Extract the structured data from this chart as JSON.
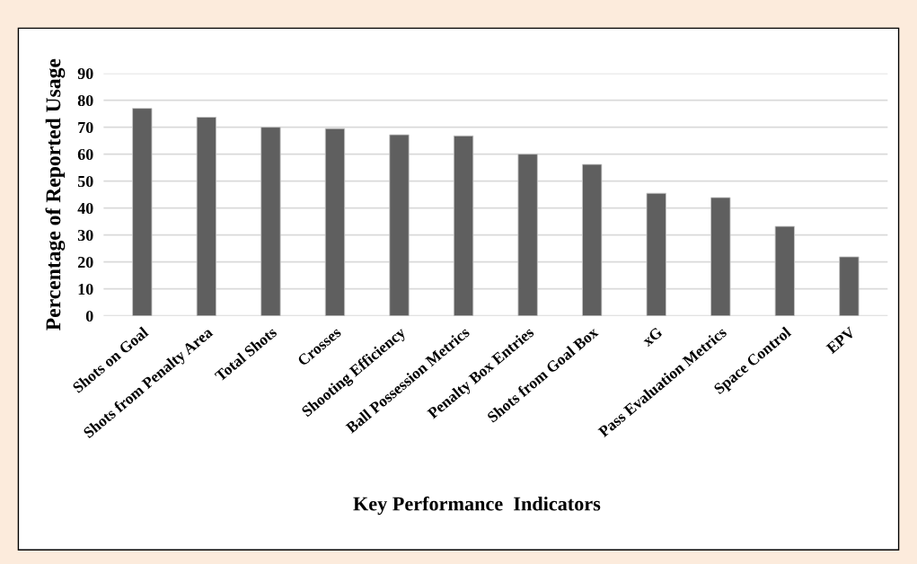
{
  "chart_data": {
    "type": "bar",
    "xlabel": "Key Performance  Indicators",
    "ylabel": "Percentage of Reported Usage",
    "categories": [
      "Shots on Goal",
      "Shots from Penalty Area",
      "Total Shots",
      "Crosses",
      "Shooting Efficiency",
      "Ball Possession Metrics",
      "Penalty Box Entries",
      "Shots from Goal Box",
      "xG",
      "Pass Evaluation Metrics",
      "Space Control",
      "EPV"
    ],
    "values": [
      77,
      73.7,
      70,
      69.5,
      67.2,
      66.8,
      60,
      56.2,
      45.5,
      43.9,
      33.2,
      21.9
    ],
    "color": "#5f5f5f",
    "ylim": [
      0,
      90
    ],
    "yticks": [
      0,
      10,
      20,
      30,
      40,
      50,
      60,
      70,
      80,
      90
    ],
    "grid": "y"
  }
}
